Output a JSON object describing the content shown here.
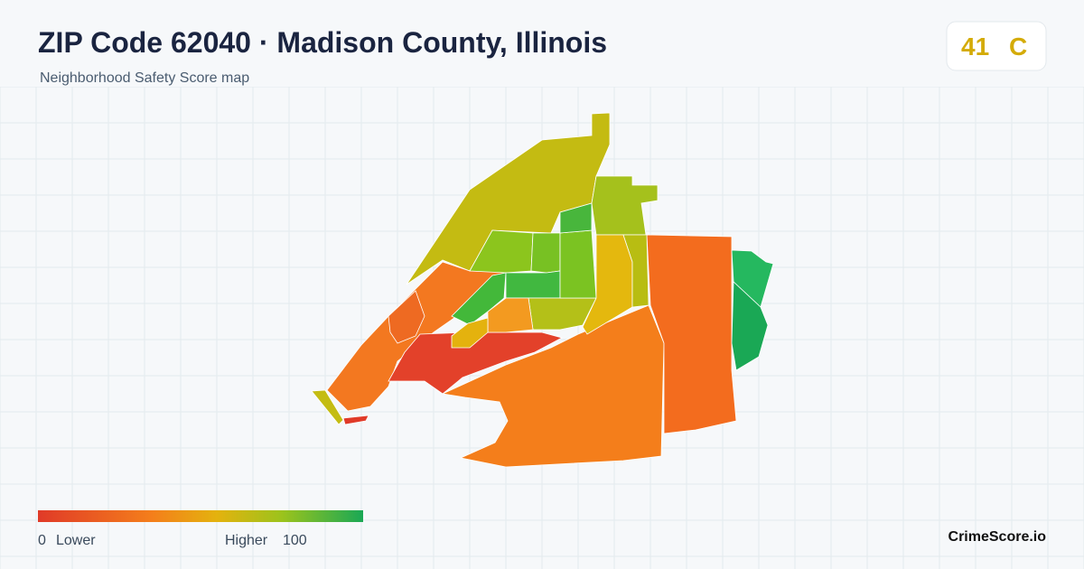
{
  "header": {
    "title": "ZIP Code 62040 · Madison County, Illinois",
    "subtitle": "Neighborhood Safety Score map"
  },
  "badge": {
    "score": "41",
    "grade": "C"
  },
  "legend": {
    "min": "0",
    "min_label": "Lower",
    "max_label": "Higher",
    "max": "100"
  },
  "footer": {
    "brand": "CrimeScore.io"
  }
}
